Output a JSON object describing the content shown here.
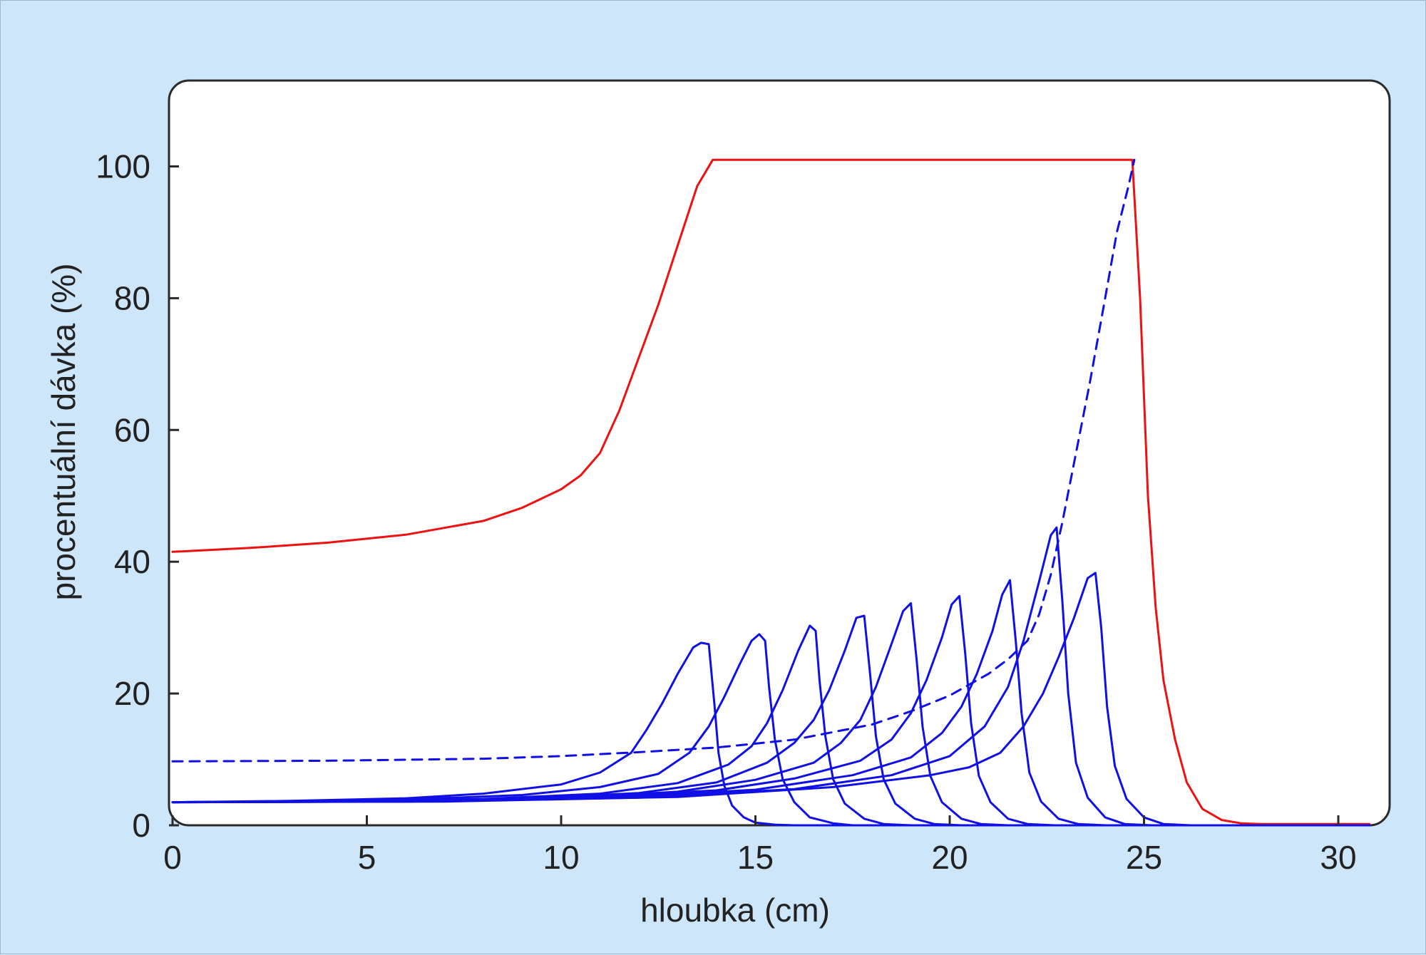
{
  "chart_data": {
    "type": "line",
    "title": "",
    "xlabel": "hloubka (cm)",
    "ylabel": "procentuální dávka (%)",
    "xlim": [
      0,
      31
    ],
    "ylim": [
      0,
      112
    ],
    "xticks": [
      0,
      5,
      10,
      15,
      20,
      25,
      30
    ],
    "yticks": [
      0,
      20,
      40,
      60,
      80,
      100
    ],
    "grid": false,
    "legend": "none",
    "colors": {
      "sobp": "#ee1111",
      "peaks": "#1010e6",
      "background": "#cde6fa",
      "plot_bg": "#ffffff",
      "frame": "#2a2a2a"
    },
    "series": [
      {
        "style": "solid",
        "color": "#ee1111",
        "x": [
          0,
          2,
          4,
          6,
          8,
          9,
          10,
          10.5,
          11,
          11.5,
          12,
          12.5,
          13,
          13.5,
          13.9,
          15,
          18,
          20,
          22,
          24,
          24.7,
          24.9,
          25.1,
          25.3,
          25.5,
          25.8,
          26.1,
          26.5,
          27,
          27.5,
          28,
          29,
          30,
          30.8
        ],
        "y": [
          41.5,
          42.1,
          42.9,
          44.1,
          46.2,
          48.2,
          51,
          53.1,
          56.5,
          63,
          71,
          79,
          88,
          97,
          101,
          101,
          101,
          101,
          101,
          101,
          101,
          80,
          50,
          33,
          22,
          13,
          6.5,
          2.5,
          0.8,
          0.3,
          0.2,
          0.2,
          0.2,
          0.2
        ]
      },
      {
        "style": "dashed",
        "color": "#1010e6",
        "x": [
          0,
          4,
          8,
          10,
          12,
          14,
          16,
          18,
          19,
          20,
          21,
          21.5,
          22,
          22.3,
          22.6,
          22.9,
          23.2,
          23.6,
          24,
          24.3,
          24.6,
          24.75
        ],
        "y": [
          9.7,
          9.8,
          10.1,
          10.5,
          11.1,
          11.8,
          13,
          15.3,
          17.3,
          19.7,
          23,
          25.2,
          28,
          32,
          38,
          46,
          55,
          67,
          80,
          90,
          97,
          101
        ]
      },
      {
        "style": "solid",
        "color": "#1010e6",
        "x": [
          0,
          3,
          6,
          8,
          10,
          11,
          11.8,
          12.2,
          12.6,
          13,
          13.4,
          13.6,
          13.8,
          13.95,
          14.05,
          14.2,
          14.4,
          14.7,
          15,
          15.5,
          16,
          30.8
        ],
        "y": [
          3.5,
          3.7,
          4.1,
          4.8,
          6.2,
          8,
          11,
          14.5,
          18.5,
          23,
          27,
          27.7,
          27.5,
          18,
          11,
          6,
          3,
          1.2,
          0.4,
          0.1,
          0,
          0
        ]
      },
      {
        "style": "solid",
        "color": "#1010e6",
        "x": [
          0,
          3,
          6,
          9,
          11,
          12.5,
          13.3,
          13.8,
          14.2,
          14.6,
          14.9,
          15.1,
          15.25,
          15.35,
          15.5,
          15.7,
          16,
          16.4,
          17,
          17.5,
          30.8
        ],
        "y": [
          3.5,
          3.6,
          3.9,
          4.6,
          5.8,
          7.8,
          11,
          15,
          19.5,
          24.5,
          28,
          29,
          28,
          21,
          13,
          7,
          3.5,
          1.2,
          0.3,
          0,
          0
        ]
      },
      {
        "style": "solid",
        "color": "#1010e6",
        "x": [
          0,
          4,
          8,
          11,
          13,
          14.3,
          14.9,
          15.3,
          15.7,
          16.1,
          16.4,
          16.55,
          16.65,
          16.8,
          17,
          17.3,
          17.8,
          18.3,
          19,
          30.8
        ],
        "y": [
          3.5,
          3.6,
          4,
          4.8,
          6.4,
          9.2,
          12,
          15.5,
          20.5,
          26.5,
          30.3,
          29.5,
          22,
          13.5,
          7,
          3.3,
          1,
          0.2,
          0,
          0
        ]
      },
      {
        "style": "solid",
        "color": "#1010e6",
        "x": [
          0,
          5,
          9,
          12,
          14,
          15.3,
          16,
          16.5,
          16.9,
          17.3,
          17.6,
          17.8,
          17.95,
          18.1,
          18.3,
          18.6,
          19.1,
          19.6,
          20.3,
          30.8
        ],
        "y": [
          3.5,
          3.6,
          4,
          4.9,
          6.5,
          9.5,
          12.5,
          16,
          20.5,
          26.5,
          31.5,
          31.8,
          23,
          13.5,
          7,
          3.3,
          1,
          0.2,
          0,
          0
        ]
      },
      {
        "style": "solid",
        "color": "#1010e6",
        "x": [
          0,
          5,
          10,
          13,
          15,
          16.5,
          17.2,
          17.7,
          18.1,
          18.5,
          18.8,
          19,
          19.15,
          19.3,
          19.5,
          19.8,
          20.3,
          20.8,
          21.5,
          30.8
        ],
        "y": [
          3.5,
          3.6,
          4.1,
          5.1,
          6.9,
          9.5,
          12.5,
          16,
          21,
          27.5,
          32.5,
          33.7,
          25,
          15,
          7.5,
          3.5,
          1,
          0.2,
          0,
          0
        ]
      },
      {
        "style": "solid",
        "color": "#1010e6",
        "x": [
          0,
          5,
          10,
          14,
          16,
          17.7,
          18.5,
          19,
          19.4,
          19.8,
          20.05,
          20.25,
          20.4,
          20.55,
          20.75,
          21.05,
          21.5,
          22,
          22.7,
          30.8
        ],
        "y": [
          3.5,
          3.6,
          4.1,
          5.3,
          7.1,
          9.8,
          13,
          17,
          22,
          28.5,
          33.5,
          34.8,
          26,
          15.5,
          7.5,
          3.5,
          1,
          0.2,
          0,
          0
        ]
      },
      {
        "style": "solid",
        "color": "#1010e6",
        "x": [
          0,
          6,
          11,
          15,
          17.5,
          19,
          19.8,
          20.3,
          20.7,
          21.1,
          21.35,
          21.55,
          21.7,
          21.85,
          22.05,
          22.35,
          22.8,
          23.3,
          24,
          30.8
        ],
        "y": [
          3.5,
          3.6,
          4.1,
          5.4,
          7.6,
          10.3,
          14,
          18,
          23,
          29.5,
          35,
          37.2,
          28,
          17,
          8,
          3.6,
          1,
          0.2,
          0,
          0
        ]
      },
      {
        "style": "solid",
        "color": "#1010e6",
        "x": [
          0,
          6,
          12,
          16,
          18.5,
          20,
          20.9,
          21.5,
          21.9,
          22.3,
          22.6,
          22.75,
          22.9,
          23.05,
          23.25,
          23.55,
          24,
          24.5,
          25.2,
          30.8
        ],
        "y": [
          3.5,
          3.6,
          4.2,
          5.5,
          7.6,
          10.5,
          15,
          21,
          28,
          37,
          44,
          45.2,
          34,
          20,
          9.5,
          4.2,
          1.2,
          0.2,
          0,
          0
        ]
      },
      {
        "style": "solid",
        "color": "#1010e6",
        "x": [
          0,
          7,
          13,
          17,
          19.5,
          20.5,
          21.3,
          21.9,
          22.4,
          22.8,
          23.2,
          23.55,
          23.75,
          23.9,
          24.05,
          24.25,
          24.55,
          25,
          25.5,
          26.2,
          30.8
        ],
        "y": [
          3.5,
          3.6,
          4.3,
          5.8,
          7.6,
          8.8,
          11,
          15,
          20,
          25.5,
          31.5,
          37.5,
          38.3,
          30,
          18,
          9,
          4,
          1.2,
          0.2,
          0,
          0
        ]
      }
    ]
  }
}
